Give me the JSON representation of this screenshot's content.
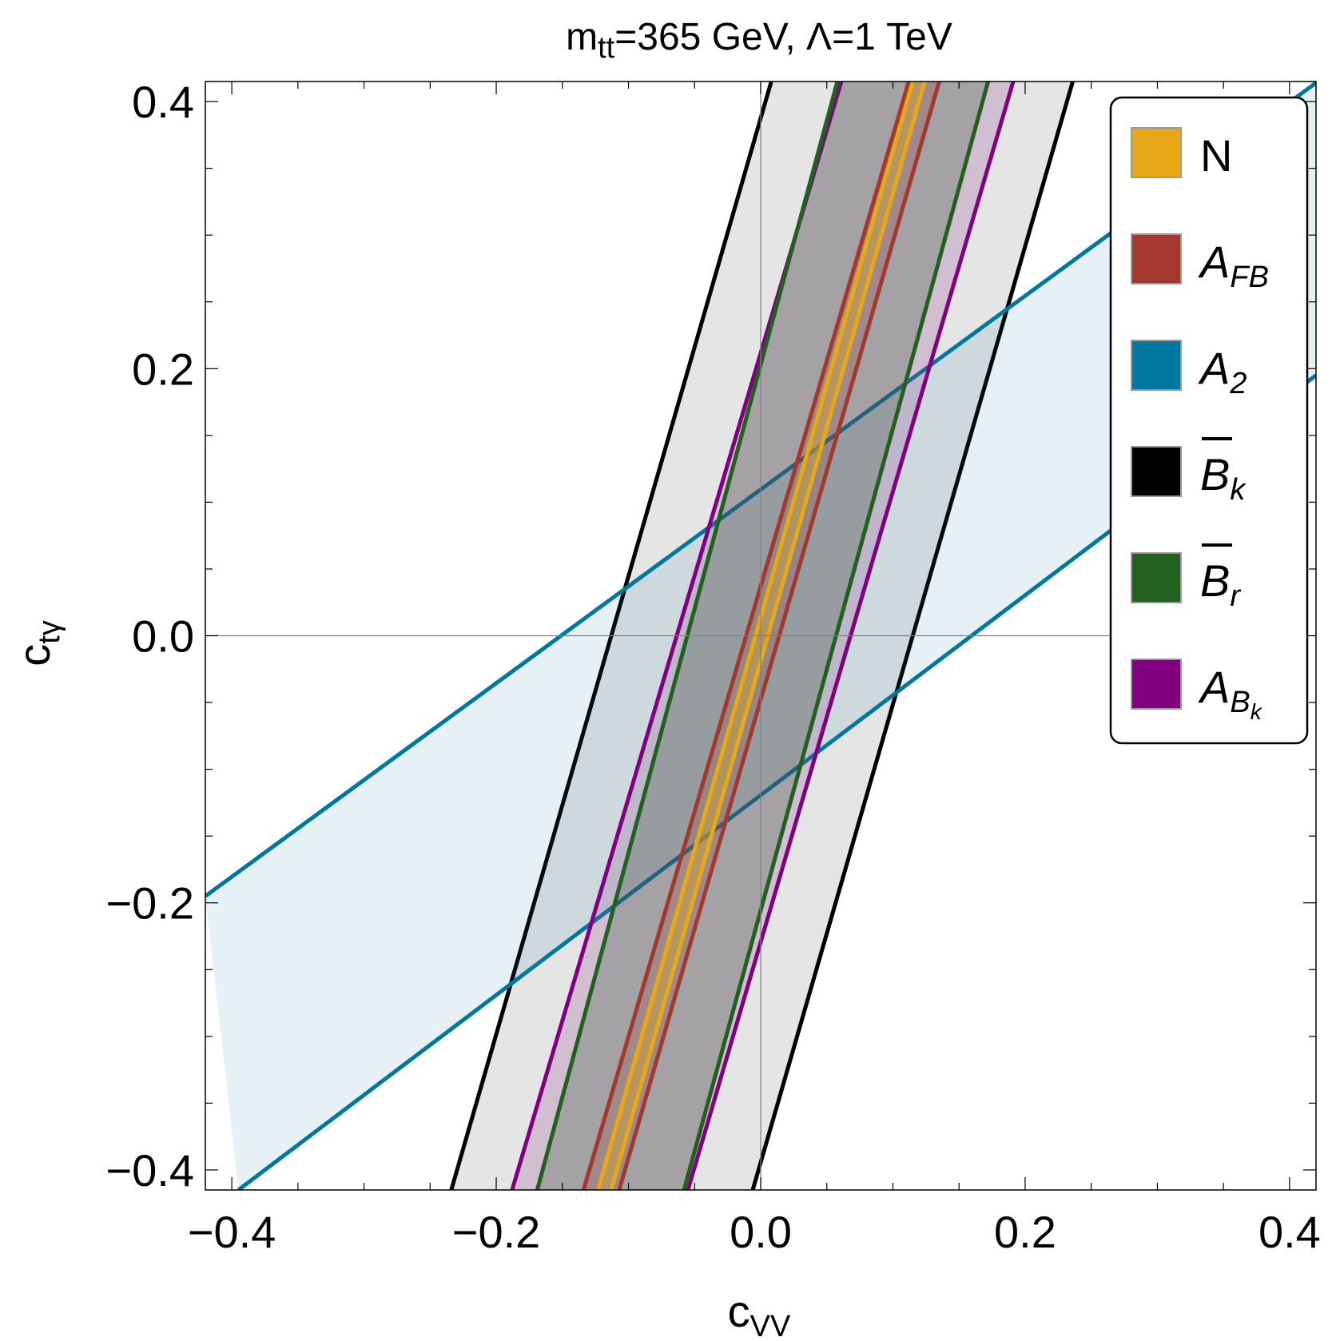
{
  "chart_data": {
    "type": "band_region",
    "title": {
      "m": "m",
      "m_sub": "tt",
      "rest": "=365 GeV, Λ=1 TeV"
    },
    "xlabel": {
      "main": "c",
      "sub": "VV"
    },
    "ylabel": {
      "main": "c",
      "sub": "tγ"
    },
    "xlim": [
      -0.42,
      0.42
    ],
    "ylim": [
      -0.415,
      0.415
    ],
    "xticks": [
      -0.4,
      -0.2,
      0.0,
      0.2,
      0.4
    ],
    "xtick_labels": [
      "−0.4",
      "−0.2",
      "0.0",
      "0.2",
      "0.4"
    ],
    "yticks": [
      -0.4,
      -0.2,
      0.0,
      0.2,
      0.4
    ],
    "ytick_labels": [
      "−0.4",
      "−0.2",
      "0.0",
      "0.2",
      "0.4"
    ],
    "legend_position": "top-right",
    "series": [
      {
        "id": "Bk",
        "legend": {
          "main": "B",
          "sub": "k",
          "italic": true,
          "overline": true
        },
        "color": "#000000",
        "fill": "#e5e5e5",
        "lines": [
          [
            [
              -0.234,
              -0.415
            ],
            [
              0.008,
              0.415
            ]
          ],
          [
            [
              -0.006,
              -0.415
            ],
            [
              0.236,
              0.415
            ]
          ]
        ]
      },
      {
        "id": "A2",
        "legend": {
          "main": "A",
          "sub": "2",
          "italic": true,
          "overline": false
        },
        "color": "#00789e",
        "fill": "rgba(0,120,158,0.10)",
        "lines": [
          [
            [
              -0.42,
              -0.195
            ],
            [
              0.42,
              0.414
            ]
          ],
          [
            [
              -0.395,
              -0.415
            ],
            [
              0.42,
              0.195
            ]
          ]
        ]
      },
      {
        "id": "ABk",
        "legend": {
          "main": "A",
          "sub": "B",
          "subsub": "k",
          "italic": true,
          "overline": false
        },
        "color": "#800080",
        "fill": "rgba(140,60,140,0.22)",
        "lines": [
          [
            [
              -0.188,
              -0.415
            ],
            [
              0.061,
              0.415
            ]
          ],
          [
            [
              -0.055,
              -0.415
            ],
            [
              0.191,
              0.415
            ]
          ]
        ]
      },
      {
        "id": "Br",
        "legend": {
          "main": "B",
          "sub": "r",
          "italic": true,
          "overline": true
        },
        "color": "#22601f",
        "fill": "rgba(40,80,40,0.26)",
        "lines": [
          [
            [
              -0.169,
              -0.415
            ],
            [
              0.058,
              0.415
            ]
          ],
          [
            [
              -0.058,
              -0.415
            ],
            [
              0.172,
              0.415
            ]
          ]
        ]
      },
      {
        "id": "AFB",
        "legend": {
          "main": "A",
          "sub": "FB",
          "italic": true,
          "overline": false
        },
        "color": "#a3382f",
        "fill": "rgba(150,80,70,0.30)",
        "lines": [
          [
            [
              -0.134,
              -0.415
            ],
            [
              0.112,
              0.415
            ]
          ],
          [
            [
              -0.107,
              -0.415
            ],
            [
              0.135,
              0.415
            ]
          ]
        ]
      },
      {
        "id": "N",
        "legend": {
          "main": "N",
          "sub": "",
          "italic": false,
          "overline": false
        },
        "color": "#e6a817",
        "fill": "rgba(200,160,60,0.55)",
        "lines": [
          [
            [
              -0.123,
              -0.415
            ],
            [
              0.115,
              0.415
            ]
          ],
          [
            [
              -0.113,
              -0.415
            ],
            [
              0.124,
              0.415
            ]
          ]
        ]
      }
    ],
    "legend_order": [
      "N",
      "AFB",
      "A2",
      "Bk",
      "Br",
      "ABk"
    ]
  }
}
